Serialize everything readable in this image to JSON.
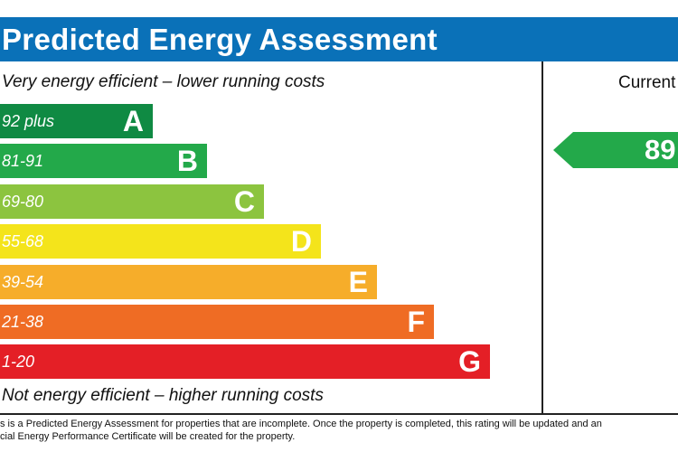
{
  "header": {
    "title": "Predicted Energy Assessment"
  },
  "captions": {
    "top": "Very energy efficient – lower running costs",
    "bottom": "Not energy efficient – higher running costs"
  },
  "bands": [
    {
      "range": "92 plus",
      "letter": "A",
      "color": "#0f8a43"
    },
    {
      "range": "81-91",
      "letter": "B",
      "color": "#23a94a"
    },
    {
      "range": "69-80",
      "letter": "C",
      "color": "#8cc43f"
    },
    {
      "range": "55-68",
      "letter": "D",
      "color": "#f4e41b"
    },
    {
      "range": "39-54",
      "letter": "E",
      "color": "#f6ad2a"
    },
    {
      "range": "21-38",
      "letter": "F",
      "color": "#ef6c24"
    },
    {
      "range": "1-20",
      "letter": "G",
      "color": "#e41f26"
    }
  ],
  "current": {
    "label": "Current",
    "value": "89",
    "color": "#23a94a"
  },
  "footnote": {
    "line1": "s is a Predicted Energy Assessment for properties that are incomplete. Once the property is completed, this rating will be updated and an",
    "line2": "cial Energy Performance Certificate will be created for the property."
  }
}
